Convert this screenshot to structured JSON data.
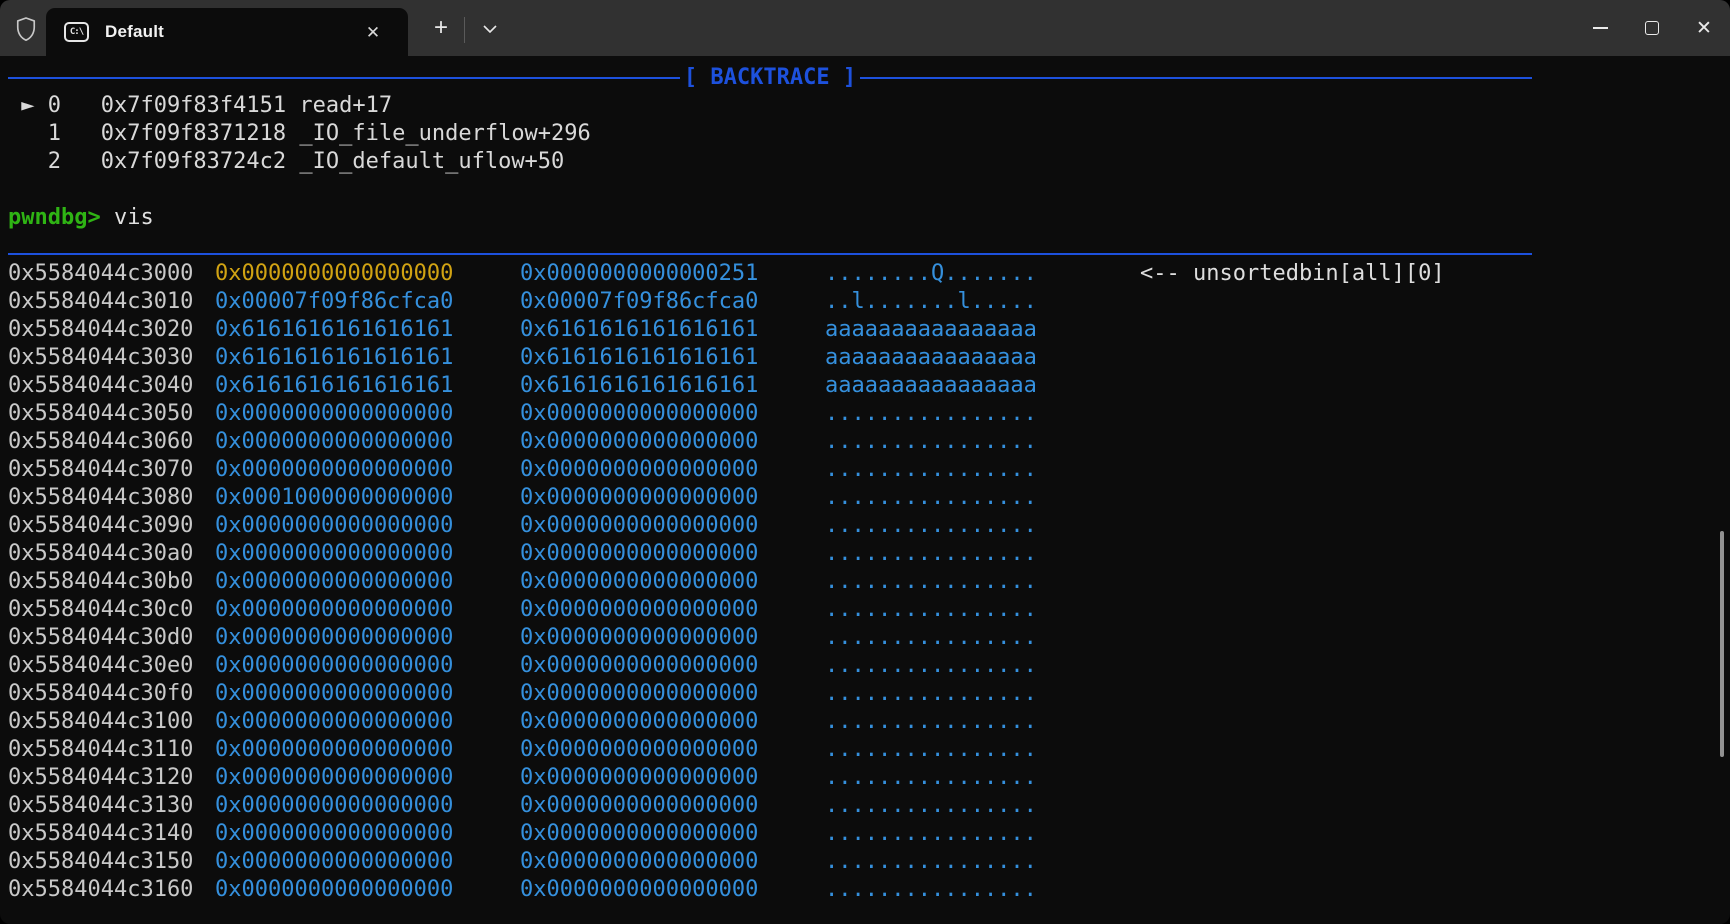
{
  "titlebar": {
    "tab": {
      "icon_text": "C:\\",
      "label": "Default",
      "close_glyph": "✕"
    },
    "new_tab_glyph": "+",
    "window_controls": {
      "close_glyph": "✕"
    }
  },
  "terminal": {
    "backtrace": {
      "header": "[ BACKTRACE ]",
      "frames": [
        {
          "text": " ► 0   0x7f09f83f4151 read+17"
        },
        {
          "text": "   1   0x7f09f8371218 _IO_file_underflow+296"
        },
        {
          "text": "   2   0x7f09f83724c2 _IO_default_uflow+50"
        }
      ]
    },
    "prompt": {
      "label": "pwndbg>",
      "command": " vis"
    },
    "heap": {
      "rows": [
        {
          "addr": "0x5584044c3000",
          "v1": "0x0000000000000000",
          "v1_color": "yellow",
          "v2": "0x0000000000000251",
          "ascii": "........Q.......",
          "note": "<-- unsortedbin[all][0]"
        },
        {
          "addr": "0x5584044c3010",
          "v1": "0x00007f09f86cfca0",
          "v2": "0x00007f09f86cfca0",
          "ascii": "..l.......l....."
        },
        {
          "addr": "0x5584044c3020",
          "v1": "0x6161616161616161",
          "v2": "0x6161616161616161",
          "ascii": "aaaaaaaaaaaaaaaa"
        },
        {
          "addr": "0x5584044c3030",
          "v1": "0x6161616161616161",
          "v2": "0x6161616161616161",
          "ascii": "aaaaaaaaaaaaaaaa"
        },
        {
          "addr": "0x5584044c3040",
          "v1": "0x6161616161616161",
          "v2": "0x6161616161616161",
          "ascii": "aaaaaaaaaaaaaaaa"
        },
        {
          "addr": "0x5584044c3050",
          "v1": "0x0000000000000000",
          "v2": "0x0000000000000000",
          "ascii": "................"
        },
        {
          "addr": "0x5584044c3060",
          "v1": "0x0000000000000000",
          "v2": "0x0000000000000000",
          "ascii": "................"
        },
        {
          "addr": "0x5584044c3070",
          "v1": "0x0000000000000000",
          "v2": "0x0000000000000000",
          "ascii": "................"
        },
        {
          "addr": "0x5584044c3080",
          "v1": "0x0001000000000000",
          "v2": "0x0000000000000000",
          "ascii": "................"
        },
        {
          "addr": "0x5584044c3090",
          "v1": "0x0000000000000000",
          "v2": "0x0000000000000000",
          "ascii": "................"
        },
        {
          "addr": "0x5584044c30a0",
          "v1": "0x0000000000000000",
          "v2": "0x0000000000000000",
          "ascii": "................"
        },
        {
          "addr": "0x5584044c30b0",
          "v1": "0x0000000000000000",
          "v2": "0x0000000000000000",
          "ascii": "................"
        },
        {
          "addr": "0x5584044c30c0",
          "v1": "0x0000000000000000",
          "v2": "0x0000000000000000",
          "ascii": "................"
        },
        {
          "addr": "0x5584044c30d0",
          "v1": "0x0000000000000000",
          "v2": "0x0000000000000000",
          "ascii": "................"
        },
        {
          "addr": "0x5584044c30e0",
          "v1": "0x0000000000000000",
          "v2": "0x0000000000000000",
          "ascii": "................"
        },
        {
          "addr": "0x5584044c30f0",
          "v1": "0x0000000000000000",
          "v2": "0x0000000000000000",
          "ascii": "................"
        },
        {
          "addr": "0x5584044c3100",
          "v1": "0x0000000000000000",
          "v2": "0x0000000000000000",
          "ascii": "................"
        },
        {
          "addr": "0x5584044c3110",
          "v1": "0x0000000000000000",
          "v2": "0x0000000000000000",
          "ascii": "................"
        },
        {
          "addr": "0x5584044c3120",
          "v1": "0x0000000000000000",
          "v2": "0x0000000000000000",
          "ascii": "................"
        },
        {
          "addr": "0x5584044c3130",
          "v1": "0x0000000000000000",
          "v2": "0x0000000000000000",
          "ascii": "................"
        },
        {
          "addr": "0x5584044c3140",
          "v1": "0x0000000000000000",
          "v2": "0x0000000000000000",
          "ascii": "................"
        },
        {
          "addr": "0x5584044c3150",
          "v1": "0x0000000000000000",
          "v2": "0x0000000000000000",
          "ascii": "................"
        },
        {
          "addr": "0x5584044c3160",
          "v1": "0x0000000000000000",
          "v2": "0x0000000000000000",
          "ascii": "................"
        }
      ]
    }
  },
  "colors": {
    "bg": "#0c0c0c",
    "titlebar_bg": "#313131",
    "fg": "#d6d6d6",
    "addr_fg": "#c9c9c9",
    "header_blue": "#1d51dd",
    "value_blue": "#3590dd",
    "chunk_yellow": "#d1a313",
    "prompt_green": "#2fb414"
  }
}
